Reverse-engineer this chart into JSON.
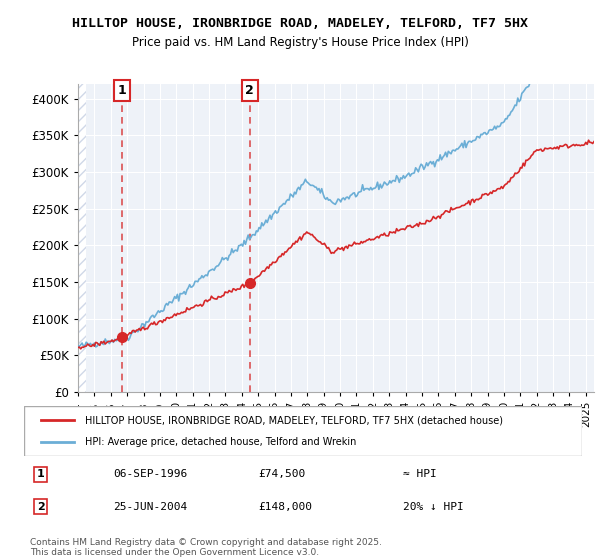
{
  "title1": "HILLTOP HOUSE, IRONBRIDGE ROAD, MADELEY, TELFORD, TF7 5HX",
  "title2": "Price paid vs. HM Land Registry's House Price Index (HPI)",
  "ylabel": "",
  "ylim": [
    0,
    420000
  ],
  "yticks": [
    0,
    50000,
    100000,
    150000,
    200000,
    250000,
    300000,
    350000,
    400000
  ],
  "ytick_labels": [
    "£0",
    "£50K",
    "£100K",
    "£150K",
    "£200K",
    "£250K",
    "£300K",
    "£350K",
    "£400K"
  ],
  "sale1_date": 1996.68,
  "sale1_price": 74500,
  "sale2_date": 2004.48,
  "sale2_price": 148000,
  "hpi_color": "#6baed6",
  "price_color": "#d62728",
  "annotation_box_color": "#d62728",
  "bg_hatch_color": "#d0d8e8",
  "plot_bg_color": "#eef2f8",
  "legend_label1": "HILLTOP HOUSE, IRONBRIDGE ROAD, MADELEY, TELFORD, TF7 5HX (detached house)",
  "legend_label2": "HPI: Average price, detached house, Telford and Wrekin",
  "table_row1": [
    "1",
    "06-SEP-1996",
    "£74,500",
    "≈ HPI"
  ],
  "table_row2": [
    "2",
    "25-JUN-2004",
    "£148,000",
    "20% ↓ HPI"
  ],
  "footer": "Contains HM Land Registry data © Crown copyright and database right 2025.\nThis data is licensed under the Open Government Licence v3.0.",
  "xmin": 1994.0,
  "xmax": 2025.5
}
